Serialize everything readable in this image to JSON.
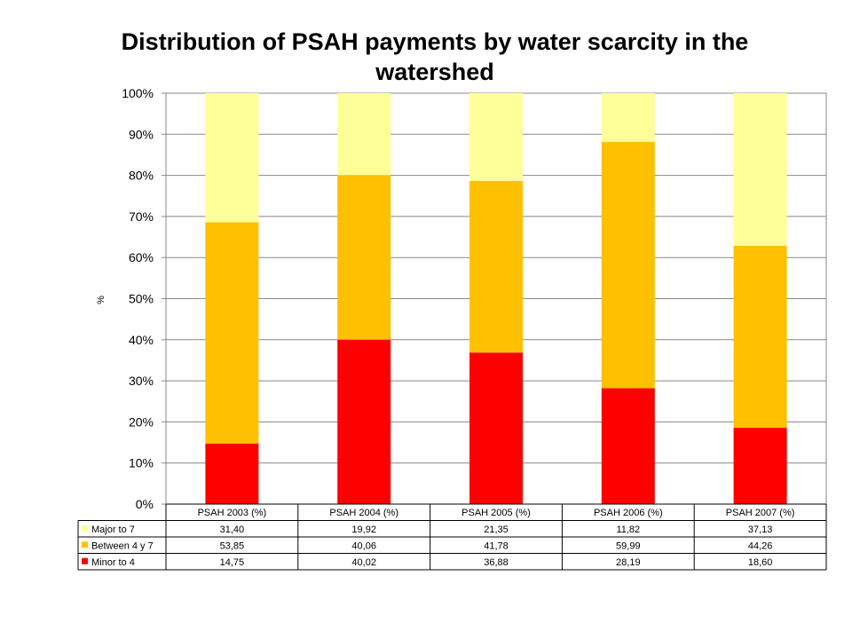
{
  "chart_data": {
    "type": "bar",
    "stacked": true,
    "percent": true,
    "title": "Distribution of PSAH payments by water scarcity in the watershed",
    "ylabel": "%",
    "ylim": [
      0,
      100
    ],
    "yticks": [
      "0%",
      "10%",
      "20%",
      "30%",
      "40%",
      "50%",
      "60%",
      "70%",
      "80%",
      "90%",
      "100%"
    ],
    "categories": [
      "PSAH 2003 (%)",
      "PSAH 2004 (%)",
      "PSAH 2005 (%)",
      "PSAH 2006 (%)",
      "PSAH 2007 (%)"
    ],
    "grid": true,
    "legend": "data-table",
    "series": [
      {
        "name": "Minor to  4",
        "color": "#ff0000",
        "values": [
          14.75,
          40.02,
          36.88,
          28.19,
          18.6
        ],
        "labels": [
          "14,75",
          "40,02",
          "36,88",
          "28,19",
          "18,60"
        ]
      },
      {
        "name": "Between 4 y 7",
        "color": "#ffc000",
        "values": [
          53.85,
          40.06,
          41.78,
          59.99,
          44.26
        ],
        "labels": [
          "53,85",
          "40,06",
          "41,78",
          "59,99",
          "44,26"
        ]
      },
      {
        "name": "Major to  7",
        "color": "#ffff99",
        "values": [
          31.4,
          19.92,
          21.35,
          11.82,
          37.13
        ],
        "labels": [
          "31,40",
          "19,92",
          "21,35",
          "11,82",
          "37,13"
        ]
      }
    ]
  }
}
